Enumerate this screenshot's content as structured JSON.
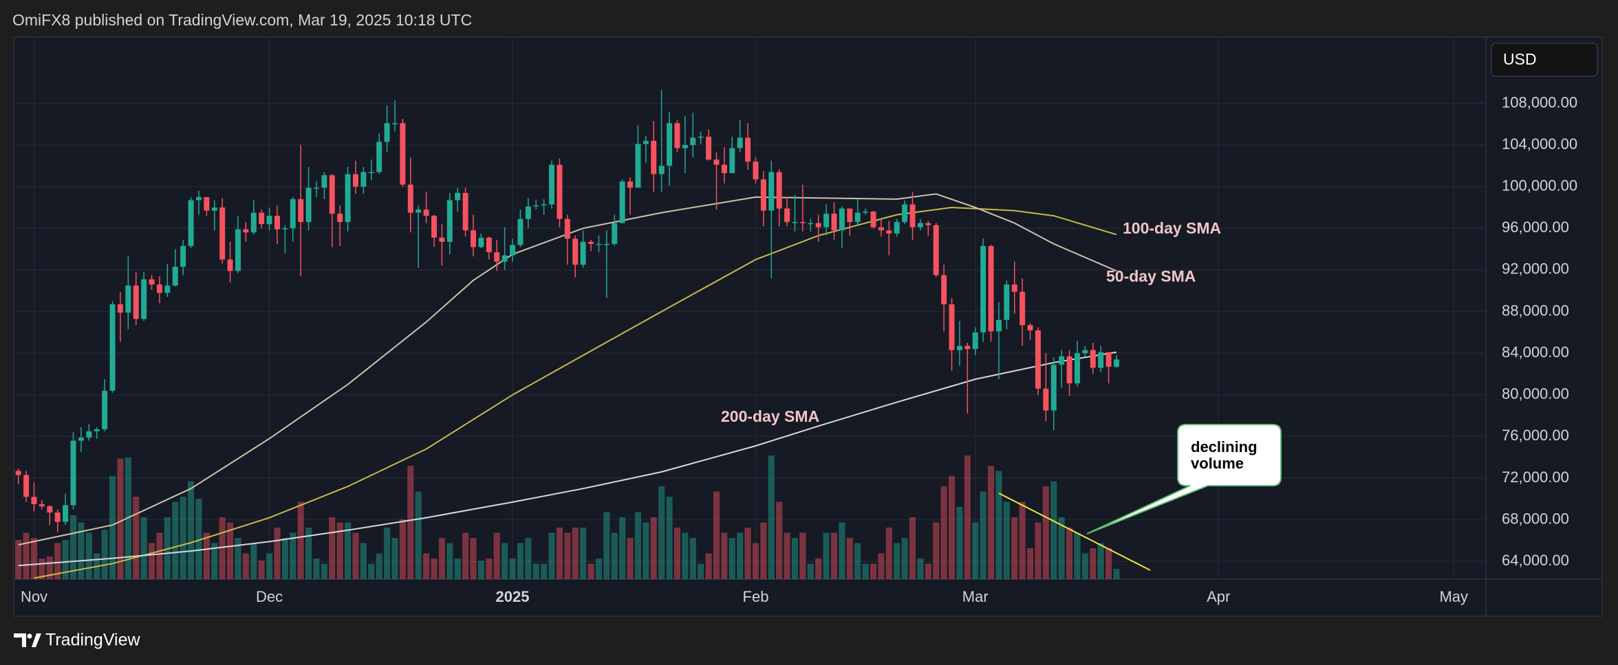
{
  "header": "OmiFX8 published on TradingView.com, Mar 19, 2025 10:18 UTC",
  "brand": "TradingView",
  "currency": "USD",
  "callout": [
    "declining",
    "volume"
  ],
  "chart_data": {
    "type": "candlestick",
    "up_color": "#22ab94",
    "down_color": "#f7525f",
    "grid": true,
    "xlim": [
      -2.5,
      185.1
    ],
    "xticks": [
      {
        "value": 0,
        "label": "Nov"
      },
      {
        "value": 30,
        "label": "Dec"
      },
      {
        "value": 61,
        "label": "2025"
      },
      {
        "value": 92,
        "label": "Feb"
      },
      {
        "value": 120,
        "label": "Mar"
      },
      {
        "value": 151,
        "label": "Apr"
      },
      {
        "value": 181,
        "label": "May"
      }
    ],
    "ylim": [
      62300,
      114300
    ],
    "yticks": [
      {
        "value": 64000,
        "label": "64,000.00"
      },
      {
        "value": 68000,
        "label": "68,000.00"
      },
      {
        "value": 72000,
        "label": "72,000.00"
      },
      {
        "value": 76000,
        "label": "76,000.00"
      },
      {
        "value": 80000,
        "label": "80,000.00"
      },
      {
        "value": 84000,
        "label": "84,000.00"
      },
      {
        "value": 88000,
        "label": "88,000.00"
      },
      {
        "value": 92000,
        "label": "92,000.00"
      },
      {
        "value": 96000,
        "label": "96,000.00"
      },
      {
        "value": 100000,
        "label": "100,000.00"
      },
      {
        "value": 104000,
        "label": "104,000.00"
      },
      {
        "value": 108000,
        "label": "108,000.00"
      }
    ],
    "x": [
      -2,
      -1,
      0,
      1,
      2,
      3,
      4,
      5,
      6,
      7,
      8,
      9,
      10,
      11,
      12,
      13,
      14,
      15,
      16,
      17,
      18,
      19,
      20,
      21,
      22,
      23,
      24,
      25,
      26,
      27,
      28,
      29,
      30,
      31,
      32,
      33,
      34,
      35,
      36,
      37,
      38,
      39,
      40,
      41,
      42,
      43,
      44,
      45,
      46,
      47,
      48,
      49,
      50,
      51,
      52,
      53,
      54,
      55,
      56,
      57,
      58,
      59,
      60,
      61,
      62,
      63,
      64,
      65,
      66,
      67,
      68,
      69,
      70,
      71,
      72,
      73,
      74,
      75,
      76,
      77,
      78,
      79,
      80,
      81,
      82,
      83,
      84,
      85,
      86,
      87,
      88,
      89,
      90,
      91,
      92,
      93,
      94,
      95,
      96,
      97,
      98,
      99,
      100,
      101,
      102,
      103,
      104,
      105,
      106,
      107,
      108,
      109,
      110,
      111,
      112,
      113,
      114,
      115,
      116,
      117,
      118,
      119,
      120,
      121,
      122,
      123,
      124,
      125,
      126,
      127,
      128,
      129,
      130,
      131,
      132,
      133,
      134,
      135,
      136,
      137,
      138
    ],
    "candles": [
      [
        72700,
        72900,
        71400,
        72300
      ],
      [
        72300,
        72700,
        69700,
        70200
      ],
      [
        70200,
        71600,
        68800,
        69500
      ],
      [
        69500,
        69900,
        69000,
        69300
      ],
      [
        69300,
        69400,
        67500,
        68700
      ],
      [
        68700,
        69000,
        66800,
        67800
      ],
      [
        67800,
        70500,
        67500,
        69400
      ],
      [
        69400,
        76400,
        69000,
        75600
      ],
      [
        75600,
        76900,
        74500,
        75900
      ],
      [
        75900,
        77200,
        75600,
        76500
      ],
      [
        76500,
        76900,
        75800,
        76700
      ],
      [
        76700,
        81500,
        76500,
        80400
      ],
      [
        80400,
        89000,
        80200,
        88700
      ],
      [
        88700,
        89900,
        85100,
        87900
      ],
      [
        87900,
        93300,
        86300,
        90500
      ],
      [
        90500,
        91800,
        86700,
        87300
      ],
      [
        87300,
        91800,
        87100,
        91100
      ],
      [
        91100,
        91500,
        90100,
        90600
      ],
      [
        90600,
        91400,
        88800,
        89800
      ],
      [
        89800,
        92600,
        89400,
        90500
      ],
      [
        90500,
        94000,
        90400,
        92300
      ],
      [
        92300,
        94900,
        91500,
        94300
      ],
      [
        94300,
        99000,
        94100,
        98700
      ],
      [
        98700,
        99600,
        97300,
        99000
      ],
      [
        99000,
        99000,
        97200,
        97700
      ],
      [
        97700,
        98700,
        95800,
        98000
      ],
      [
        98000,
        98900,
        92600,
        93000
      ],
      [
        93000,
        94700,
        90800,
        91900
      ],
      [
        91900,
        97200,
        91700,
        95900
      ],
      [
        95900,
        96600,
        94700,
        95600
      ],
      [
        95600,
        98700,
        95400,
        97500
      ],
      [
        97500,
        97800,
        96000,
        96400
      ],
      [
        96400,
        98000,
        95800,
        97200
      ],
      [
        97200,
        98200,
        94500,
        95900
      ],
      [
        95900,
        96300,
        93600,
        96000
      ],
      [
        96000,
        99000,
        94700,
        98800
      ],
      [
        98800,
        104000,
        91400,
        96600
      ],
      [
        96600,
        101900,
        95800,
        99900
      ],
      [
        99900,
        100500,
        99000,
        99900
      ],
      [
        99900,
        101400,
        98800,
        101100
      ],
      [
        101100,
        101200,
        94200,
        97400
      ],
      [
        97400,
        98200,
        94300,
        96600
      ],
      [
        96600,
        101900,
        95700,
        101200
      ],
      [
        101200,
        102500,
        99300,
        100000
      ],
      [
        100000,
        101900,
        99300,
        101400
      ],
      [
        101400,
        102600,
        100600,
        101400
      ],
      [
        101400,
        105100,
        101200,
        104300
      ],
      [
        104300,
        107800,
        103300,
        106100
      ],
      [
        106100,
        108300,
        105300,
        106100
      ],
      [
        106100,
        106500,
        100000,
        100200
      ],
      [
        100200,
        102800,
        95600,
        97500
      ],
      [
        97500,
        98200,
        92200,
        97800
      ],
      [
        97800,
        99500,
        96500,
        97200
      ],
      [
        97200,
        97300,
        94200,
        95100
      ],
      [
        95100,
        96400,
        92400,
        94700
      ],
      [
        94700,
        99400,
        93500,
        98700
      ],
      [
        98700,
        99900,
        97600,
        99400
      ],
      [
        99400,
        99900,
        95200,
        95800
      ],
      [
        95800,
        97300,
        93300,
        94200
      ],
      [
        94200,
        95500,
        94100,
        95100
      ],
      [
        95100,
        95200,
        93000,
        93700
      ],
      [
        93700,
        94900,
        91900,
        92800
      ],
      [
        92800,
        96100,
        92000,
        93400
      ],
      [
        93400,
        95000,
        92800,
        94400
      ],
      [
        94400,
        97800,
        94200,
        96900
      ],
      [
        96900,
        98900,
        96000,
        98100
      ],
      [
        98100,
        98700,
        97800,
        98200
      ],
      [
        98200,
        98800,
        97300,
        98300
      ],
      [
        98300,
        102500,
        97900,
        102100
      ],
      [
        102100,
        102700,
        96100,
        96900
      ],
      [
        96900,
        97300,
        92500,
        95000
      ],
      [
        95000,
        95300,
        91300,
        92500
      ],
      [
        92500,
        95800,
        92200,
        94700
      ],
      [
        94700,
        94900,
        93800,
        94500
      ],
      [
        94500,
        95300,
        93700,
        94500
      ],
      [
        94500,
        95800,
        89300,
        94500
      ],
      [
        94500,
        97300,
        94300,
        96500
      ],
      [
        96500,
        100700,
        96500,
        100500
      ],
      [
        100500,
        100900,
        97300,
        99900
      ],
      [
        99900,
        105900,
        99900,
        104100
      ],
      [
        104100,
        104900,
        102300,
        104400
      ],
      [
        104400,
        106300,
        99500,
        101200
      ],
      [
        101200,
        109300,
        99500,
        102000
      ],
      [
        102000,
        107200,
        100100,
        106100
      ],
      [
        106100,
        106400,
        103300,
        103700
      ],
      [
        103700,
        106800,
        101300,
        104000
      ],
      [
        104000,
        107100,
        102800,
        104700
      ],
      [
        104700,
        105300,
        104100,
        104800
      ],
      [
        104800,
        105500,
        102500,
        102600
      ],
      [
        102600,
        103300,
        97800,
        102100
      ],
      [
        102100,
        103800,
        100300,
        101300
      ],
      [
        101300,
        104800,
        101300,
        103700
      ],
      [
        103700,
        106400,
        103300,
        104700
      ],
      [
        104700,
        106100,
        101600,
        102400
      ],
      [
        102400,
        102800,
        100300,
        100700
      ],
      [
        100700,
        101500,
        96200,
        97700
      ],
      [
        97700,
        102500,
        91200,
        101400
      ],
      [
        101400,
        101700,
        96200,
        97900
      ],
      [
        97900,
        99000,
        96200,
        96600
      ],
      [
        96600,
        99200,
        95700,
        96600
      ],
      [
        96600,
        100200,
        95700,
        96500
      ],
      [
        96500,
        96900,
        95700,
        96500
      ],
      [
        96500,
        97300,
        94700,
        96100
      ],
      [
        96100,
        98300,
        95300,
        97400
      ],
      [
        97400,
        98500,
        94900,
        95800
      ],
      [
        95800,
        98100,
        94100,
        97900
      ],
      [
        97900,
        97900,
        95300,
        96600
      ],
      [
        96600,
        98800,
        96300,
        97500
      ],
      [
        97500,
        97900,
        97300,
        97600
      ],
      [
        97600,
        97700,
        96000,
        96100
      ],
      [
        96100,
        97000,
        95200,
        95800
      ],
      [
        95800,
        96700,
        93400,
        95500
      ],
      [
        95500,
        96900,
        95200,
        96600
      ],
      [
        96600,
        98700,
        96400,
        98300
      ],
      [
        98300,
        99500,
        94900,
        96100
      ],
      [
        96100,
        96900,
        95800,
        96500
      ],
      [
        96500,
        96700,
        95300,
        96300
      ],
      [
        96300,
        96500,
        91300,
        91500
      ],
      [
        91500,
        92500,
        86100,
        88700
      ],
      [
        88700,
        89300,
        82300,
        84300
      ],
      [
        84300,
        87100,
        82800,
        84700
      ],
      [
        84700,
        85000,
        78200,
        84400
      ],
      [
        84400,
        86500,
        83800,
        86000
      ],
      [
        86000,
        95000,
        85100,
        94300
      ],
      [
        94300,
        94400,
        85100,
        86100
      ],
      [
        86100,
        88900,
        81500,
        87200
      ],
      [
        87200,
        91000,
        86300,
        90600
      ],
      [
        90600,
        92800,
        87800,
        89900
      ],
      [
        89900,
        91200,
        84700,
        86700
      ],
      [
        86700,
        86900,
        85300,
        86200
      ],
      [
        86200,
        86500,
        80000,
        80600
      ],
      [
        80600,
        84000,
        77500,
        78500
      ],
      [
        78500,
        83600,
        76600,
        82900
      ],
      [
        82900,
        84300,
        80700,
        83700
      ],
      [
        83700,
        84300,
        79900,
        81100
      ],
      [
        81100,
        85200,
        80800,
        84000
      ],
      [
        84000,
        84700,
        83700,
        84300
      ],
      [
        84300,
        85000,
        82000,
        82600
      ],
      [
        82600,
        84700,
        82200,
        84100
      ],
      [
        84100,
        84100,
        81100,
        82700
      ],
      [
        82700,
        83800,
        82600,
        83400
      ]
    ],
    "volume": [
      38,
      45,
      40,
      20,
      22,
      35,
      38,
      62,
      55,
      45,
      25,
      48,
      100,
      117,
      118,
      80,
      60,
      35,
      45,
      60,
      75,
      80,
      95,
      78,
      45,
      35,
      60,
      55,
      40,
      25,
      35,
      18,
      25,
      50,
      40,
      45,
      75,
      50,
      20,
      15,
      60,
      55,
      55,
      45,
      35,
      15,
      25,
      50,
      40,
      58,
      110,
      85,
      25,
      20,
      40,
      35,
      20,
      45,
      40,
      18,
      20,
      45,
      35,
      20,
      35,
      40,
      15,
      15,
      45,
      50,
      45,
      50,
      50,
      15,
      20,
      65,
      45,
      60,
      40,
      65,
      55,
      60,
      90,
      80,
      50,
      45,
      40,
      15,
      25,
      85,
      45,
      40,
      45,
      50,
      35,
      55,
      120,
      75,
      45,
      40,
      45,
      15,
      20,
      45,
      45,
      55,
      40,
      35,
      15,
      15,
      25,
      50,
      35,
      40,
      60,
      20,
      15,
      55,
      90,
      100,
      70,
      120,
      55,
      85,
      110,
      105,
      75,
      60,
      75,
      30,
      55,
      90,
      95,
      60,
      50,
      45,
      25,
      30,
      35,
      30,
      10
    ],
    "series": [
      {
        "name": "100-day SMA",
        "color": "#c9bb4a",
        "x": [
          0,
          10,
          20,
          30,
          40,
          50,
          61,
          70,
          80,
          92,
          100,
          110,
          117,
          125,
          130,
          138
        ],
        "values": [
          62400,
          63800,
          65800,
          68200,
          71200,
          74800,
          80000,
          83800,
          88000,
          93000,
          95300,
          97300,
          98000,
          97700,
          97200,
          95400
        ]
      },
      {
        "name": "50-day SMA",
        "color": "#cfc3a8",
        "x": [
          -2,
          10,
          20,
          30,
          40,
          50,
          56,
          61,
          70,
          80,
          92,
          110,
          115,
          120,
          125,
          130,
          138
        ],
        "values": [
          65600,
          67500,
          71000,
          75800,
          81000,
          87000,
          91000,
          93500,
          96000,
          97500,
          99000,
          98800,
          99300,
          98000,
          96500,
          94500,
          91900
        ]
      },
      {
        "name": "200-day SMA",
        "color": "#d9d9d9",
        "x": [
          -2,
          10,
          20,
          30,
          40,
          50,
          61,
          70,
          80,
          92,
          100,
          110,
          120,
          130,
          138
        ],
        "values": [
          63600,
          64300,
          65000,
          65900,
          67000,
          68200,
          69700,
          71000,
          72600,
          75100,
          77000,
          79300,
          81500,
          83100,
          84100
        ]
      }
    ]
  }
}
